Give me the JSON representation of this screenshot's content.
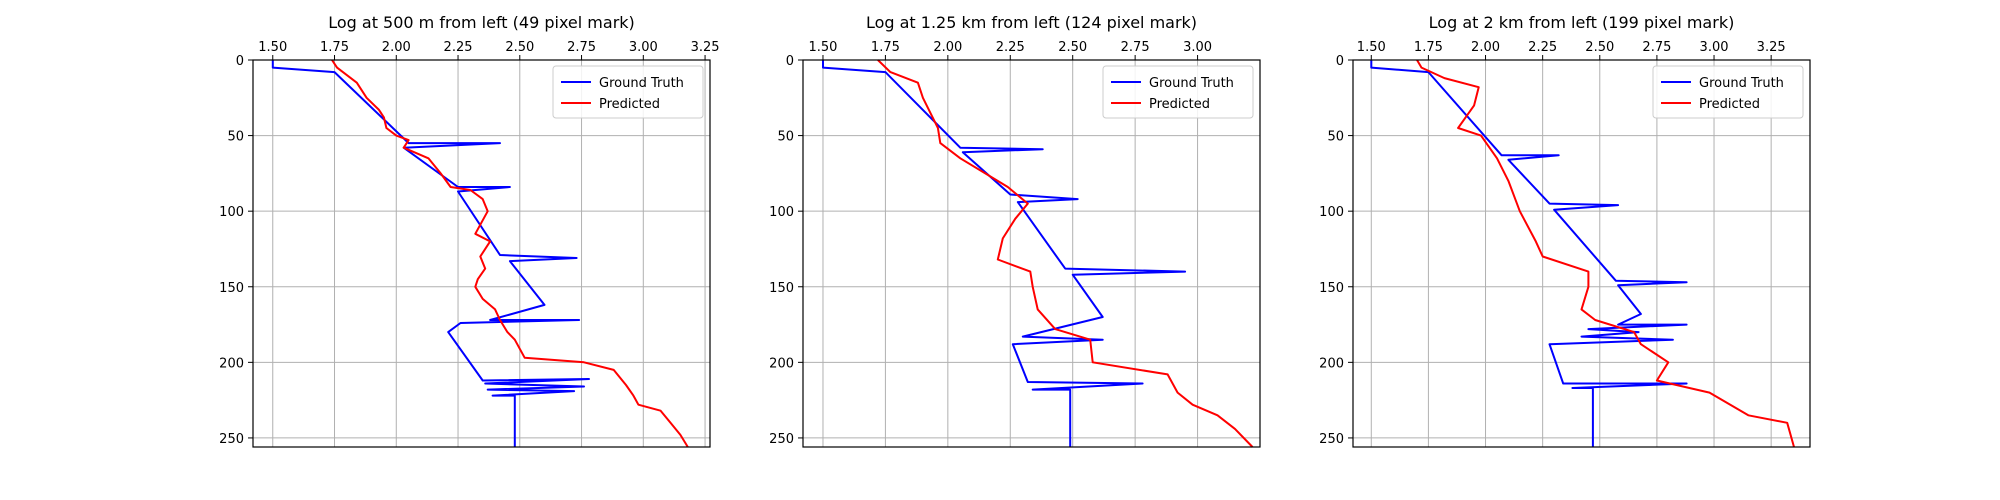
{
  "colors": {
    "ground_truth": "#0000ff",
    "predicted": "#ff0000",
    "grid": "#b0b0b0",
    "axes": "#000000"
  },
  "chart_data": [
    {
      "type": "line",
      "title": "Log at 500 m from left (49 pixel mark)",
      "xlabel": "",
      "ylabel": "",
      "xlim": [
        1.42,
        3.27
      ],
      "ylim": [
        256,
        0
      ],
      "y_inverted": true,
      "x_axis_position": "top",
      "xticks": [
        1.5,
        1.75,
        2.0,
        2.25,
        2.5,
        2.75,
        3.0,
        3.25
      ],
      "xtick_labels": [
        "1.50",
        "1.75",
        "2.00",
        "2.25",
        "2.50",
        "2.75",
        "3.00",
        "3.25"
      ],
      "yticks": [
        0,
        50,
        100,
        150,
        200,
        250
      ],
      "ytick_labels": [
        "0",
        "50",
        "100",
        "150",
        "200",
        "250"
      ],
      "grid": true,
      "legend_position": "top-right",
      "series": [
        {
          "name": "Ground Truth",
          "color": "#0000ff",
          "points": [
            [
              1.5,
              0
            ],
            [
              1.5,
              5
            ],
            [
              1.75,
              8
            ],
            [
              2.05,
              55
            ],
            [
              2.42,
              55
            ],
            [
              2.03,
              58
            ],
            [
              2.25,
              84
            ],
            [
              2.46,
              84
            ],
            [
              2.25,
              87
            ],
            [
              2.42,
              129
            ],
            [
              2.73,
              131
            ],
            [
              2.46,
              133
            ],
            [
              2.6,
              162
            ],
            [
              2.38,
              172
            ],
            [
              2.74,
              172
            ],
            [
              2.26,
              174
            ],
            [
              2.21,
              180
            ],
            [
              2.35,
              212
            ],
            [
              2.78,
              211
            ],
            [
              2.36,
              214
            ],
            [
              2.76,
              216
            ],
            [
              2.37,
              218
            ],
            [
              2.72,
              219
            ],
            [
              2.39,
              222
            ],
            [
              2.48,
              222
            ],
            [
              2.48,
              256
            ]
          ]
        },
        {
          "name": "Predicted",
          "color": "#ff0000",
          "points": [
            [
              1.74,
              0
            ],
            [
              1.76,
              5
            ],
            [
              1.84,
              15
            ],
            [
              1.88,
              25
            ],
            [
              1.93,
              33
            ],
            [
              1.95,
              38
            ],
            [
              1.96,
              45
            ],
            [
              2.0,
              50
            ],
            [
              2.05,
              53
            ],
            [
              2.03,
              58
            ],
            [
              2.13,
              65
            ],
            [
              2.18,
              75
            ],
            [
              2.22,
              84
            ],
            [
              2.3,
              86
            ],
            [
              2.35,
              92
            ],
            [
              2.37,
              100
            ],
            [
              2.32,
              115
            ],
            [
              2.38,
              120
            ],
            [
              2.34,
              130
            ],
            [
              2.36,
              138
            ],
            [
              2.33,
              145
            ],
            [
              2.32,
              150
            ],
            [
              2.35,
              158
            ],
            [
              2.4,
              165
            ],
            [
              2.42,
              172
            ],
            [
              2.45,
              180
            ],
            [
              2.48,
              185
            ],
            [
              2.52,
              197
            ],
            [
              2.76,
              200
            ],
            [
              2.88,
              205
            ],
            [
              2.93,
              215
            ],
            [
              2.96,
              222
            ],
            [
              2.98,
              228
            ],
            [
              3.07,
              232
            ],
            [
              3.11,
              240
            ],
            [
              3.15,
              248
            ],
            [
              3.18,
              256
            ]
          ]
        }
      ]
    },
    {
      "type": "line",
      "title": "Log at 1.25 km from left (124 pixel mark)",
      "xlabel": "",
      "ylabel": "",
      "xlim": [
        1.42,
        3.25
      ],
      "ylim": [
        256,
        0
      ],
      "y_inverted": true,
      "x_axis_position": "top",
      "xticks": [
        1.5,
        1.75,
        2.0,
        2.25,
        2.5,
        2.75,
        3.0
      ],
      "xtick_labels": [
        "1.50",
        "1.75",
        "2.00",
        "2.25",
        "2.50",
        "2.75",
        "3.00"
      ],
      "yticks": [
        0,
        50,
        100,
        150,
        200,
        250
      ],
      "ytick_labels": [
        "0",
        "50",
        "100",
        "150",
        "200",
        "250"
      ],
      "grid": true,
      "legend_position": "top-right",
      "series": [
        {
          "name": "Ground Truth",
          "color": "#0000ff",
          "points": [
            [
              1.5,
              0
            ],
            [
              1.5,
              5
            ],
            [
              1.75,
              8
            ],
            [
              2.05,
              58
            ],
            [
              2.38,
              59
            ],
            [
              2.06,
              61
            ],
            [
              2.25,
              89
            ],
            [
              2.52,
              92
            ],
            [
              2.28,
              94
            ],
            [
              2.47,
              138
            ],
            [
              2.95,
              140
            ],
            [
              2.5,
              142
            ],
            [
              2.62,
              170
            ],
            [
              2.3,
              183
            ],
            [
              2.62,
              185
            ],
            [
              2.26,
              188
            ],
            [
              2.32,
              213
            ],
            [
              2.78,
              214
            ],
            [
              2.34,
              218
            ],
            [
              2.49,
              218
            ],
            [
              2.49,
              256
            ]
          ]
        },
        {
          "name": "Predicted",
          "color": "#ff0000",
          "points": [
            [
              1.72,
              0
            ],
            [
              1.77,
              8
            ],
            [
              1.88,
              15
            ],
            [
              1.9,
              25
            ],
            [
              1.93,
              35
            ],
            [
              1.96,
              45
            ],
            [
              1.97,
              55
            ],
            [
              2.05,
              65
            ],
            [
              2.15,
              75
            ],
            [
              2.24,
              84
            ],
            [
              2.32,
              95
            ],
            [
              2.27,
              105
            ],
            [
              2.22,
              118
            ],
            [
              2.2,
              132
            ],
            [
              2.33,
              140
            ],
            [
              2.34,
              150
            ],
            [
              2.36,
              165
            ],
            [
              2.43,
              178
            ],
            [
              2.57,
              185
            ],
            [
              2.58,
              200
            ],
            [
              2.88,
              208
            ],
            [
              2.92,
              220
            ],
            [
              2.98,
              228
            ],
            [
              3.08,
              235
            ],
            [
              3.15,
              244
            ],
            [
              3.22,
              256
            ]
          ]
        }
      ]
    },
    {
      "type": "line",
      "title": "Log at 2 km from left (199 pixel mark)",
      "xlabel": "",
      "ylabel": "",
      "xlim": [
        1.42,
        3.42
      ],
      "ylim": [
        256,
        0
      ],
      "y_inverted": true,
      "x_axis_position": "top",
      "xticks": [
        1.5,
        1.75,
        2.0,
        2.25,
        2.5,
        2.75,
        3.0,
        3.25
      ],
      "xtick_labels": [
        "1.50",
        "1.75",
        "2.00",
        "2.25",
        "2.50",
        "2.75",
        "3.00",
        "3.25"
      ],
      "yticks": [
        0,
        50,
        100,
        150,
        200,
        250
      ],
      "ytick_labels": [
        "0",
        "50",
        "100",
        "150",
        "200",
        "250"
      ],
      "grid": true,
      "legend_position": "top-right",
      "series": [
        {
          "name": "Ground Truth",
          "color": "#0000ff",
          "points": [
            [
              1.5,
              0
            ],
            [
              1.5,
              5
            ],
            [
              1.75,
              8
            ],
            [
              2.07,
              63
            ],
            [
              2.32,
              63
            ],
            [
              2.1,
              66
            ],
            [
              2.28,
              95
            ],
            [
              2.58,
              96
            ],
            [
              2.3,
              99
            ],
            [
              2.57,
              146
            ],
            [
              2.88,
              147
            ],
            [
              2.58,
              149
            ],
            [
              2.68,
              168
            ],
            [
              2.58,
              175
            ],
            [
              2.88,
              175
            ],
            [
              2.45,
              178
            ],
            [
              2.67,
              180
            ],
            [
              2.42,
              183
            ],
            [
              2.82,
              185
            ],
            [
              2.28,
              188
            ],
            [
              2.34,
              214
            ],
            [
              2.88,
              214
            ],
            [
              2.38,
              217
            ],
            [
              2.47,
              217
            ],
            [
              2.47,
              256
            ]
          ]
        },
        {
          "name": "Predicted",
          "color": "#ff0000",
          "points": [
            [
              1.7,
              0
            ],
            [
              1.72,
              5
            ],
            [
              1.82,
              12
            ],
            [
              1.97,
              18
            ],
            [
              1.95,
              30
            ],
            [
              1.88,
              45
            ],
            [
              1.98,
              50
            ],
            [
              2.05,
              65
            ],
            [
              2.1,
              80
            ],
            [
              2.15,
              100
            ],
            [
              2.22,
              120
            ],
            [
              2.25,
              130
            ],
            [
              2.45,
              140
            ],
            [
              2.45,
              150
            ],
            [
              2.42,
              165
            ],
            [
              2.48,
              172
            ],
            [
              2.65,
              180
            ],
            [
              2.68,
              188
            ],
            [
              2.8,
              200
            ],
            [
              2.75,
              212
            ],
            [
              2.98,
              220
            ],
            [
              3.15,
              235
            ],
            [
              3.32,
              240
            ],
            [
              3.35,
              256
            ]
          ]
        }
      ]
    }
  ]
}
